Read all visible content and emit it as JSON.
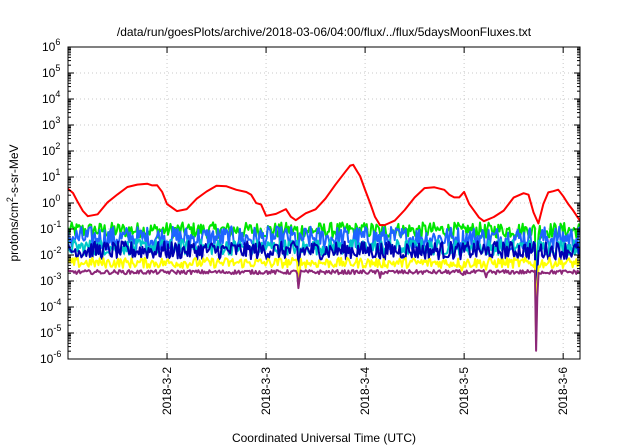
{
  "chart_data": {
    "type": "line",
    "title": "/data/run/goesPlots/archive/2018-03-06/04:00/flux/../flux/5daysMoonFluxes.txt",
    "xlabel": "Coordinated Universal Time (UTC)",
    "ylabel": "protons/cm2-s-sr-MeV",
    "ylabel_parts": {
      "pre": "protons/cm",
      "sup": "2",
      "post": "-s-sr-MeV"
    },
    "yscale": "log",
    "ylim": [
      1e-06,
      1000000.0
    ],
    "xlim": [
      1.0,
      6.17
    ],
    "yticks": [
      {
        "exp": "-6",
        "value": 1e-06
      },
      {
        "exp": "-5",
        "value": 1e-05
      },
      {
        "exp": "-4",
        "value": 0.0001
      },
      {
        "exp": "-3",
        "value": 0.001
      },
      {
        "exp": "-2",
        "value": 0.01
      },
      {
        "exp": "-1",
        "value": 0.1
      },
      {
        "exp": "0",
        "value": 1
      },
      {
        "exp": "1",
        "value": 10.0
      },
      {
        "exp": "2",
        "value": 100.0
      },
      {
        "exp": "3",
        "value": 1000.0
      },
      {
        "exp": "4",
        "value": 10000.0
      },
      {
        "exp": "5",
        "value": 100000.0
      },
      {
        "exp": "6",
        "value": 1000000.0
      }
    ],
    "ytick_base": "10",
    "xticks": [
      {
        "label": "2018-3-2",
        "value": 2
      },
      {
        "label": "2018-3-3",
        "value": 3
      },
      {
        "label": "2018-3-4",
        "value": 4
      },
      {
        "label": "2018-3-5",
        "value": 5
      },
      {
        "label": "2018-3-6",
        "value": 6
      }
    ],
    "grid": true,
    "series": [
      {
        "color": "#ff0000",
        "kind": "smooth",
        "x": [
          1.0,
          1.05,
          1.1,
          1.15,
          1.2,
          1.3,
          1.4,
          1.5,
          1.6,
          1.7,
          1.8,
          1.85,
          1.9,
          1.95,
          2.0,
          2.1,
          2.2,
          2.3,
          2.4,
          2.5,
          2.6,
          2.7,
          2.8,
          2.85,
          2.9,
          2.95,
          3.0,
          3.1,
          3.2,
          3.25,
          3.3,
          3.4,
          3.5,
          3.6,
          3.7,
          3.8,
          3.85,
          3.88,
          3.92,
          3.95,
          4.0,
          4.05,
          4.1,
          4.15,
          4.2,
          4.3,
          4.4,
          4.5,
          4.6,
          4.7,
          4.8,
          4.85,
          4.9,
          4.95,
          5.0,
          5.05,
          5.1,
          5.15,
          5.2,
          5.3,
          5.4,
          5.5,
          5.6,
          5.65,
          5.7,
          5.75,
          5.8,
          5.85,
          5.9,
          5.95,
          6.0,
          6.05,
          6.1,
          6.17
        ],
        "y": [
          3.5,
          2.5,
          1.0,
          0.5,
          0.3,
          0.4,
          1.0,
          2.0,
          4.0,
          5.0,
          5.5,
          5.0,
          4.5,
          2.5,
          1.0,
          0.5,
          0.6,
          1.5,
          3.0,
          4.5,
          4.5,
          3.5,
          2.5,
          2.0,
          1.0,
          0.8,
          0.3,
          0.4,
          0.6,
          0.3,
          0.2,
          0.4,
          0.6,
          1.5,
          5.0,
          15.0,
          25.0,
          28.0,
          18.0,
          10.0,
          3.0,
          1.0,
          0.3,
          0.15,
          0.15,
          0.2,
          0.5,
          1.5,
          3.5,
          4.0,
          3.5,
          2.0,
          1.5,
          1.5,
          2.5,
          1.0,
          0.5,
          0.3,
          0.2,
          0.3,
          0.5,
          1.5,
          2.5,
          2.0,
          0.4,
          0.15,
          1.0,
          2.5,
          3.0,
          3.2,
          2.0,
          1.0,
          0.5,
          0.2
        ]
      },
      {
        "color": "#00e600",
        "kind": "noisy",
        "base": 0.09,
        "amp": 0.3
      },
      {
        "color": "#1e64ff",
        "kind": "noisy",
        "base": 0.045,
        "amp": 0.45
      },
      {
        "color": "#00c8c8",
        "kind": "noisy",
        "base": 0.02,
        "amp": 0.3
      },
      {
        "color": "#0000b4",
        "kind": "noisy",
        "base": 0.015,
        "amp": 0.35
      },
      {
        "color": "#ffff00",
        "kind": "noisy",
        "base": 0.005,
        "amp": 0.2
      },
      {
        "color": "#8c2878",
        "kind": "flat",
        "base": 0.0022,
        "amp": 0.08
      }
    ],
    "dips": [
      {
        "x": 3.33,
        "factor": 0.14
      },
      {
        "x": 4.15,
        "factor": 0.5
      },
      {
        "x": 4.98,
        "factor": 0.6
      },
      {
        "x": 5.22,
        "factor": 0.5
      },
      {
        "x": 5.73,
        "factor": 0.0001
      }
    ]
  }
}
